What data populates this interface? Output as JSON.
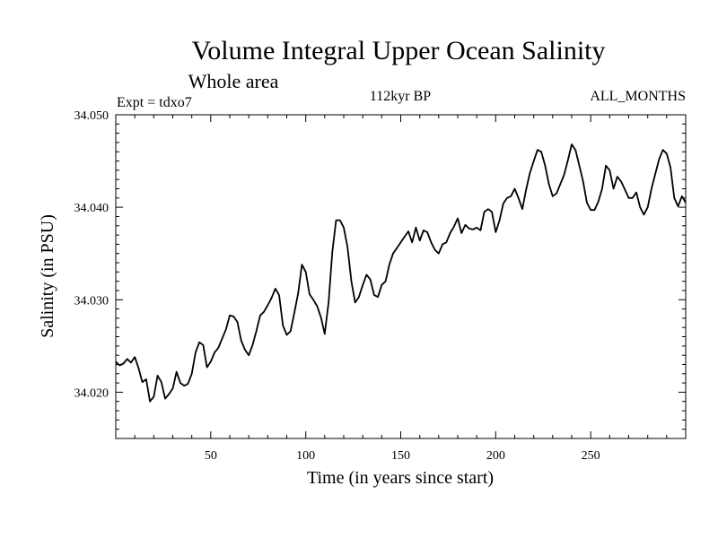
{
  "chart_data": {
    "type": "line",
    "title": "Volume Integral Upper Ocean Salinity",
    "subtitle": "Whole area",
    "annotations": {
      "left": "Expt = tdxo7",
      "center": "112kyr BP",
      "right": "ALL_MONTHS"
    },
    "xlabel": "Time (in years since start)",
    "ylabel": "Salinity (in PSU)",
    "xlim": [
      0,
      300
    ],
    "ylim": [
      34.015,
      34.05
    ],
    "xticks": [
      50,
      100,
      150,
      200,
      250
    ],
    "xtick_labels": [
      "50",
      "100",
      "150",
      "200",
      "250"
    ],
    "yticks": [
      34.02,
      34.03,
      34.04,
      34.05
    ],
    "ytick_labels": [
      "34.020",
      "34.030",
      "34.040",
      "34.050"
    ],
    "grid": false,
    "series": [
      {
        "color": "#000000",
        "x": [
          0,
          2,
          4,
          6,
          8,
          10,
          12,
          14,
          16,
          18,
          20,
          22,
          24,
          26,
          28,
          30,
          32,
          34,
          36,
          38,
          40,
          42,
          44,
          46,
          48,
          50,
          52,
          54,
          56,
          58,
          60,
          62,
          64,
          66,
          68,
          70,
          72,
          74,
          76,
          78,
          80,
          82,
          84,
          86,
          88,
          90,
          92,
          94,
          96,
          98,
          100,
          102,
          104,
          106,
          108,
          110,
          112,
          114,
          116,
          118,
          120,
          122,
          124,
          126,
          128,
          130,
          132,
          134,
          136,
          138,
          140,
          142,
          144,
          146,
          148,
          150,
          152,
          154,
          156,
          158,
          160,
          162,
          164,
          166,
          168,
          170,
          172,
          174,
          176,
          178,
          180,
          182,
          184,
          186,
          188,
          190,
          192,
          194,
          196,
          198,
          200,
          202,
          204,
          206,
          208,
          210,
          212,
          214,
          216,
          218,
          220,
          222,
          224,
          226,
          228,
          230,
          232,
          234,
          236,
          238,
          240,
          242,
          244,
          246,
          248,
          250,
          252,
          254,
          256,
          258,
          260,
          262,
          264,
          266,
          268,
          270,
          272,
          274,
          276,
          278,
          280,
          282,
          284,
          286,
          288,
          290,
          292,
          294,
          296,
          298,
          300
        ],
        "values": [
          34.0233,
          34.0229,
          34.0231,
          34.0236,
          34.0232,
          34.0238,
          34.0226,
          34.0211,
          34.0214,
          34.019,
          34.0195,
          34.0218,
          34.0211,
          34.0193,
          34.0198,
          34.0204,
          34.0222,
          34.021,
          34.0207,
          34.0209,
          34.022,
          34.0243,
          34.0254,
          34.0251,
          34.0227,
          34.0233,
          34.0243,
          34.0248,
          34.0258,
          34.0268,
          34.0283,
          34.0282,
          34.0276,
          34.0256,
          34.0246,
          34.024,
          34.0251,
          34.0266,
          34.0283,
          34.0287,
          34.0294,
          34.0302,
          34.0312,
          34.0305,
          34.0272,
          34.0262,
          34.0266,
          34.0286,
          34.0307,
          34.0338,
          34.033,
          34.0306,
          34.03,
          34.0293,
          34.0281,
          34.0263,
          34.0297,
          34.0352,
          34.0386,
          34.0386,
          34.0378,
          34.0357,
          34.032,
          34.0297,
          34.0303,
          34.0316,
          34.0327,
          34.0322,
          34.0305,
          34.0303,
          34.0316,
          34.032,
          34.0338,
          34.035,
          34.0356,
          34.0362,
          34.0368,
          34.0374,
          34.0362,
          34.0378,
          34.0364,
          34.0375,
          34.0373,
          34.0362,
          34.0354,
          34.035,
          34.036,
          34.0362,
          34.0372,
          34.0379,
          34.0388,
          34.0372,
          34.0381,
          34.0377,
          34.0376,
          34.0378,
          34.0375,
          34.0395,
          34.0398,
          34.0395,
          34.0373,
          34.0386,
          34.0404,
          34.041,
          34.0412,
          34.042,
          34.041,
          34.0398,
          34.0419,
          34.0437,
          34.045,
          34.0462,
          34.046,
          34.0445,
          34.0425,
          34.0412,
          34.0415,
          34.0425,
          34.0435,
          34.0451,
          34.0468,
          34.0462,
          34.0445,
          34.0428,
          34.0405,
          34.0397,
          34.0397,
          34.0406,
          34.042,
          34.0445,
          34.044,
          34.042,
          34.0433,
          34.0428,
          34.0419,
          34.041,
          34.041,
          34.0416,
          34.04,
          34.0392,
          34.04,
          34.042,
          34.0436,
          34.0452,
          34.0462,
          34.0458,
          34.0443,
          34.041,
          34.0401,
          34.0412,
          34.0405
        ]
      }
    ]
  }
}
